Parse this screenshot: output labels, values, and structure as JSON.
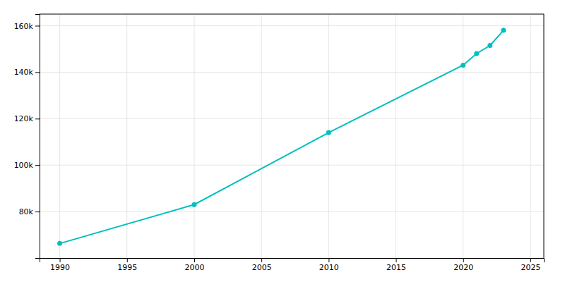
{
  "chart_data": {
    "type": "line",
    "x": [
      1990,
      2000,
      2010,
      2020,
      2021,
      2022,
      2023
    ],
    "values": [
      66270,
      83000,
      114000,
      143000,
      148000,
      151500,
      158000
    ],
    "color": "#00bfbf",
    "marker": "circle",
    "xlim": [
      1988.5,
      2026
    ],
    "ylim": [
      60000,
      165000
    ],
    "xticks": [
      1990,
      1995,
      2000,
      2005,
      2010,
      2015,
      2020,
      2025
    ],
    "yticks": [
      {
        "value": 80000,
        "label": "80k"
      },
      {
        "value": 100000,
        "label": "100k"
      },
      {
        "value": 120000,
        "label": "120k"
      },
      {
        "value": 140000,
        "label": "140k"
      },
      {
        "value": 160000,
        "label": "160k"
      }
    ],
    "grid": true
  }
}
